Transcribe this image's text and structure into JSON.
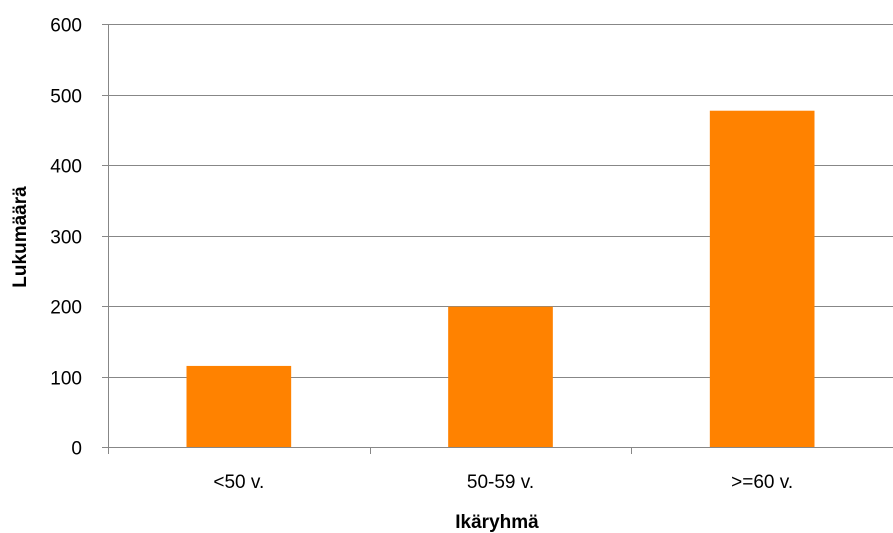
{
  "chart_data": {
    "type": "bar",
    "categories": [
      "<50 v.",
      "50-59 v.",
      ">=60 v."
    ],
    "values": [
      115,
      199,
      477
    ],
    "title": "",
    "xlabel": "Ikäryhmä",
    "ylabel": "Lukumäärä",
    "ylim": [
      0,
      600
    ],
    "yticks": [
      0,
      100,
      200,
      300,
      400,
      500,
      600
    ],
    "grid": true,
    "legend": "none",
    "bar_color": "#FF8200",
    "grid_color": "#878787",
    "axis_color": "#878787"
  }
}
